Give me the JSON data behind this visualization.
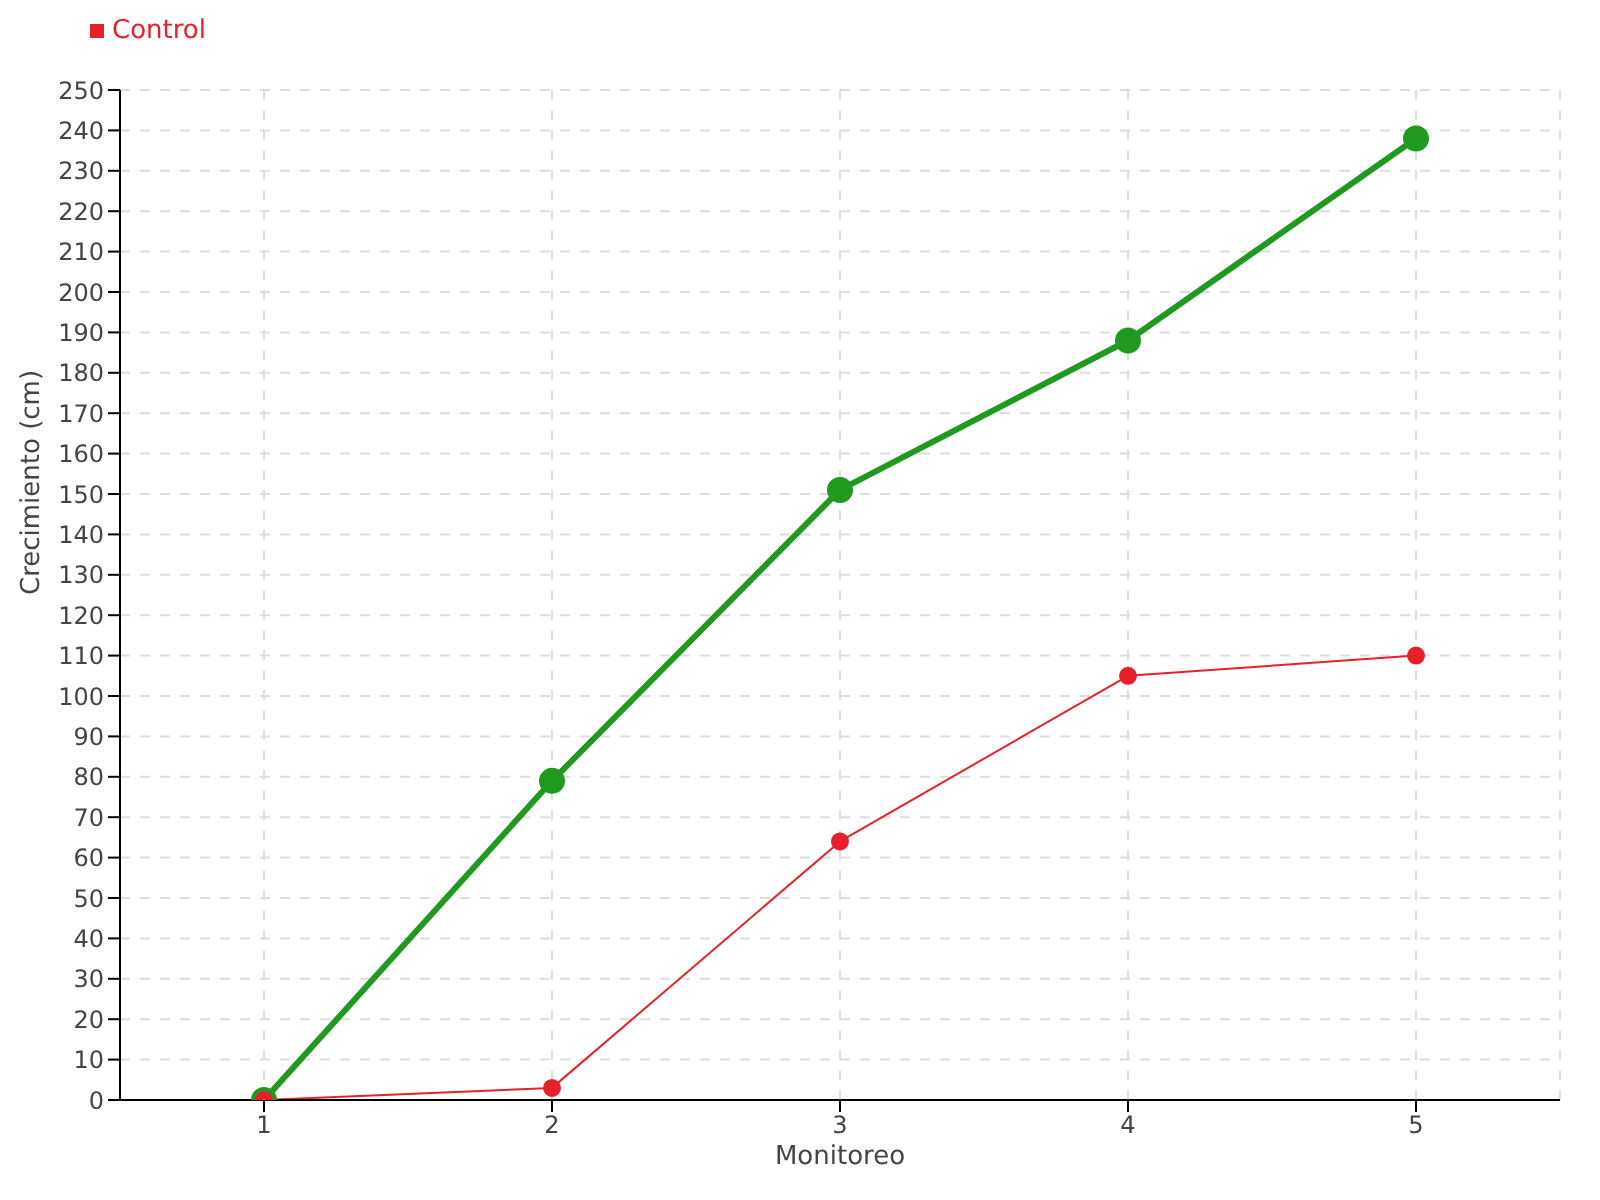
{
  "chart_data": {
    "type": "line",
    "xlabel": "Monitoreo",
    "ylabel": "Crecimiento (cm)",
    "x": [
      1,
      2,
      3,
      4,
      5
    ],
    "series": [
      {
        "color": "#1f9a1f",
        "values": [
          0,
          79,
          151,
          188,
          238
        ]
      },
      {
        "name": "Control",
        "color": "#e8202a",
        "values": [
          0,
          3,
          64,
          105,
          110
        ]
      }
    ],
    "xlim": [
      0.5,
      5.5
    ],
    "xticks": [
      1,
      2,
      3,
      4,
      5
    ],
    "ylim": [
      0,
      250
    ],
    "yticks": [
      0,
      10,
      20,
      30,
      40,
      50,
      60,
      70,
      80,
      90,
      100,
      110,
      120,
      130,
      140,
      150,
      160,
      170,
      180,
      190,
      200,
      210,
      220,
      230,
      240,
      250
    ],
    "grid": true,
    "legend": "top left",
    "marker": "circle",
    "line_style": "solid"
  }
}
